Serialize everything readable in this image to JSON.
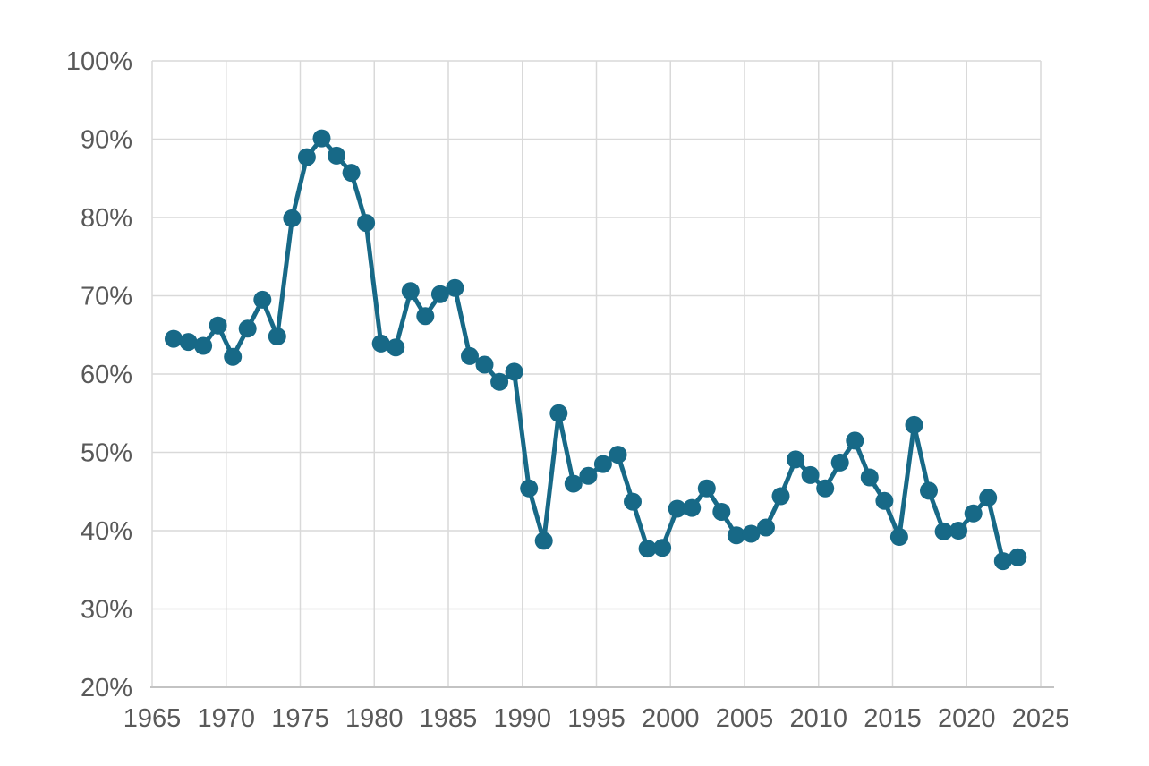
{
  "chart_data": {
    "type": "line",
    "title": "",
    "xlabel": "",
    "ylabel": "",
    "legend": false,
    "grid": true,
    "xlim": [
      1965,
      2025
    ],
    "ylim": [
      20,
      100
    ],
    "x_ticks": [
      1965,
      1970,
      1975,
      1980,
      1985,
      1990,
      1995,
      2000,
      2005,
      2010,
      2015,
      2020,
      2025
    ],
    "y_ticks": [
      20,
      30,
      40,
      50,
      60,
      70,
      80,
      90,
      100
    ],
    "y_tick_suffix": "%",
    "series": [
      {
        "name": "percent",
        "x": [
          1966,
          1967,
          1968,
          1969,
          1970,
          1971,
          1972,
          1973,
          1974,
          1975,
          1976,
          1977,
          1978,
          1979,
          1980,
          1981,
          1982,
          1983,
          1984,
          1985,
          1986,
          1987,
          1988,
          1989,
          1990,
          1991,
          1992,
          1993,
          1994,
          1995,
          1996,
          1997,
          1998,
          1999,
          2000,
          2001,
          2002,
          2003,
          2004,
          2005,
          2006,
          2007,
          2008,
          2009,
          2010,
          2011,
          2012,
          2013,
          2014,
          2015,
          2016,
          2017,
          2018,
          2019,
          2020,
          2021,
          2022,
          2023
        ],
        "values": [
          64.5,
          64.1,
          63.6,
          66.2,
          62.2,
          65.8,
          69.5,
          64.8,
          79.9,
          87.7,
          90.1,
          87.9,
          85.7,
          79.3,
          63.9,
          63.4,
          70.6,
          67.4,
          70.2,
          71.0,
          62.3,
          61.2,
          59.0,
          60.3,
          45.4,
          38.7,
          55.0,
          46.0,
          47.0,
          48.5,
          49.7,
          43.7,
          37.7,
          37.8,
          42.8,
          42.9,
          45.4,
          42.4,
          39.4,
          39.6,
          40.4,
          44.4,
          49.1,
          47.1,
          45.4,
          48.7,
          51.5,
          46.8,
          43.8,
          39.2,
          53.5,
          45.1,
          39.9,
          40.0,
          42.2,
          44.2,
          36.1,
          36.6
        ]
      }
    ],
    "colors": {
      "line": "#176987",
      "marker": "#176987",
      "gridline": "#d9d9d9",
      "axis_line": "#c3c3c3",
      "tick_label": "#595959",
      "background": "#ffffff"
    }
  }
}
